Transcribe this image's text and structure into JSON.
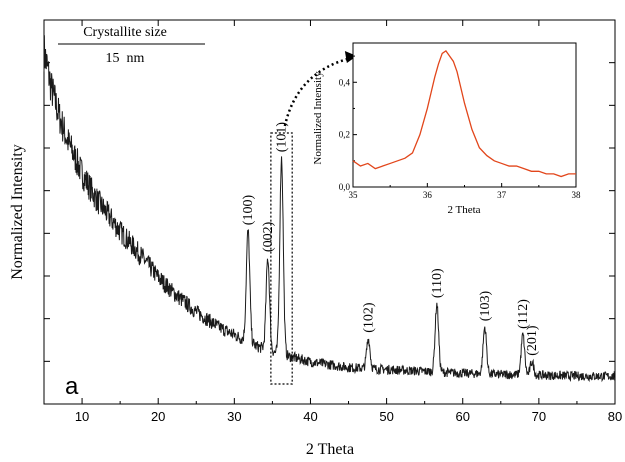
{
  "chart_data": [
    {
      "type": "line",
      "panel_label": "a",
      "xlabel": "2 Theta",
      "ylabel": "Normalized Intensity",
      "xlim": [
        5,
        80
      ],
      "ylim": [
        0,
        1
      ],
      "y_ticks_labeled": false,
      "x_ticks": [
        10,
        20,
        30,
        40,
        50,
        60,
        70,
        80
      ],
      "x_tick_labels": [
        "10",
        "20",
        "30",
        "40",
        "50",
        "60",
        "70",
        "80"
      ],
      "grid": false,
      "series_color": "#1a1a1a",
      "background_decay": {
        "x": [
          5,
          6,
          7,
          8,
          10,
          12,
          15,
          18,
          20,
          22,
          25,
          28,
          30,
          33,
          36,
          40,
          45,
          50,
          55,
          60,
          65,
          70,
          75,
          80
        ],
        "y": [
          0.92,
          0.82,
          0.75,
          0.69,
          0.6,
          0.53,
          0.45,
          0.38,
          0.33,
          0.29,
          0.24,
          0.2,
          0.18,
          0.15,
          0.13,
          0.11,
          0.095,
          0.09,
          0.085,
          0.08,
          0.077,
          0.075,
          0.073,
          0.072
        ]
      },
      "peaks": [
        {
          "label": "(100)",
          "x": 31.8,
          "y": 0.45
        },
        {
          "label": "(002)",
          "x": 34.4,
          "y": 0.38
        },
        {
          "label": "(101)",
          "x": 36.2,
          "y": 0.64
        },
        {
          "label": "(102)",
          "x": 47.6,
          "y": 0.17
        },
        {
          "label": "(110)",
          "x": 56.6,
          "y": 0.26
        },
        {
          "label": "(103)",
          "x": 62.9,
          "y": 0.2
        },
        {
          "label": "(112)",
          "x": 67.9,
          "y": 0.18
        },
        {
          "label": "(201)",
          "x": 69.1,
          "y": 0.11
        }
      ],
      "annotation_box": {
        "x_range": [
          34.8,
          37.6
        ],
        "note": "dotted box around (101) peak with arrow to inset"
      },
      "legend": {
        "title": "Crystallite size",
        "value": "15  nm",
        "placement": "top-left"
      }
    },
    {
      "type": "line",
      "role": "inset",
      "xlabel": "2 Theta",
      "ylabel": "Normalized Intensity",
      "xlim": [
        35,
        38
      ],
      "ylim": [
        0,
        0.55
      ],
      "x_ticks": [
        35,
        36,
        37,
        38
      ],
      "x_tick_labels": [
        "35",
        "36",
        "37",
        "38"
      ],
      "y_ticks": [
        0,
        0.2,
        0.4
      ],
      "y_tick_labels": [
        "0,0",
        "0,2",
        "0,4"
      ],
      "series_color": "#e2461b",
      "x": [
        35.0,
        35.1,
        35.2,
        35.3,
        35.4,
        35.5,
        35.6,
        35.7,
        35.8,
        35.9,
        36.0,
        36.05,
        36.1,
        36.15,
        36.2,
        36.25,
        36.3,
        36.35,
        36.4,
        36.45,
        36.5,
        36.55,
        36.6,
        36.7,
        36.8,
        36.9,
        37.0,
        37.1,
        37.2,
        37.3,
        37.4,
        37.5,
        37.6,
        37.7,
        37.8,
        37.9,
        38.0
      ],
      "y": [
        0.1,
        0.08,
        0.09,
        0.07,
        0.08,
        0.09,
        0.1,
        0.11,
        0.13,
        0.2,
        0.3,
        0.36,
        0.42,
        0.47,
        0.51,
        0.52,
        0.5,
        0.48,
        0.44,
        0.38,
        0.32,
        0.27,
        0.22,
        0.15,
        0.12,
        0.1,
        0.09,
        0.08,
        0.08,
        0.07,
        0.06,
        0.06,
        0.05,
        0.05,
        0.04,
        0.05,
        0.05
      ]
    }
  ]
}
